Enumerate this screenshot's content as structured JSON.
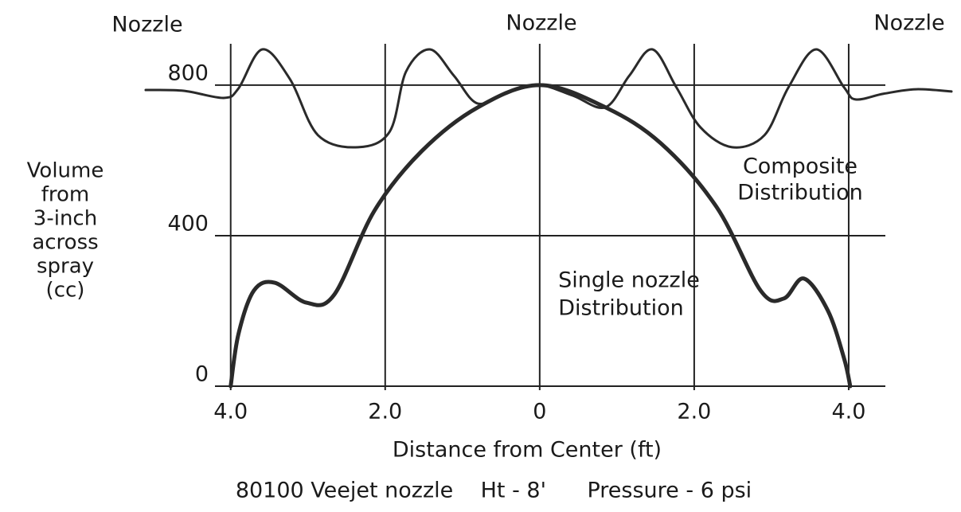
{
  "chart_data": {
    "type": "line",
    "caption": "80100 Veejet nozzle    Ht - 8'      Pressure - 6 psi",
    "x_label": "Distance from Center (ft)",
    "y_label_lines": [
      "Volume",
      "from",
      "3-inch",
      "across",
      "spray",
      "(cc)"
    ],
    "nozzle_labels": [
      "Nozzle",
      "Nozzle",
      "Nozzle"
    ],
    "annotations": [
      {
        "lines": [
          "Composite",
          "Distribution"
        ]
      },
      {
        "lines": [
          "Single nozzle",
          "Distribution"
        ]
      }
    ],
    "xlim": [
      -5.1,
      5.33
    ],
    "ylim": [
      0,
      950
    ],
    "xticks": [
      {
        "value": -4,
        "label": "4.0"
      },
      {
        "value": -2,
        "label": "2.0"
      },
      0,
      {
        "value": 2,
        "label": "2.0"
      },
      {
        "value": 4,
        "label": "4.0"
      }
    ],
    "yticks": [
      0,
      400,
      800
    ],
    "grid": true,
    "series": [
      {
        "name": "Single nozzle Distribution",
        "color": "#2a2a2a",
        "width": 5,
        "x": [
          -4,
          -3.9,
          -3.7,
          -3.43,
          -3.02,
          -2.66,
          -2.14,
          -1.53,
          -0.8,
          0,
          0.85,
          1.57,
          2.29,
          2.86,
          3.16,
          3.42,
          3.73,
          3.94,
          4.02
        ],
        "values": [
          0,
          138,
          254,
          275,
          222,
          243,
          466,
          624,
          741,
          800,
          741,
          645,
          476,
          254,
          233,
          286,
          201,
          74,
          0
        ]
      },
      {
        "name": "Composite Distribution",
        "color": "#2a2a2a",
        "width": 3,
        "x": [
          -5.1,
          -4.61,
          -4.09,
          -3.9,
          -3.59,
          -3.23,
          -2.87,
          -2.35,
          -1.94,
          -1.73,
          -1.42,
          -1.11,
          -0.8,
          -0.39,
          0,
          0.43,
          0.85,
          1.16,
          1.46,
          1.77,
          2.08,
          2.49,
          2.91,
          3.22,
          3.58,
          3.94,
          4.09,
          4.45,
          4.87,
          5.33
        ],
        "values": [
          787,
          785,
          766,
          791,
          895,
          815,
          667,
          635,
          677,
          836,
          895,
          825,
          751,
          783,
          800,
          772,
          741,
          825,
          895,
          794,
          688,
          635,
          667,
          794,
          895,
          794,
          762,
          777,
          789,
          783
        ]
      }
    ]
  }
}
